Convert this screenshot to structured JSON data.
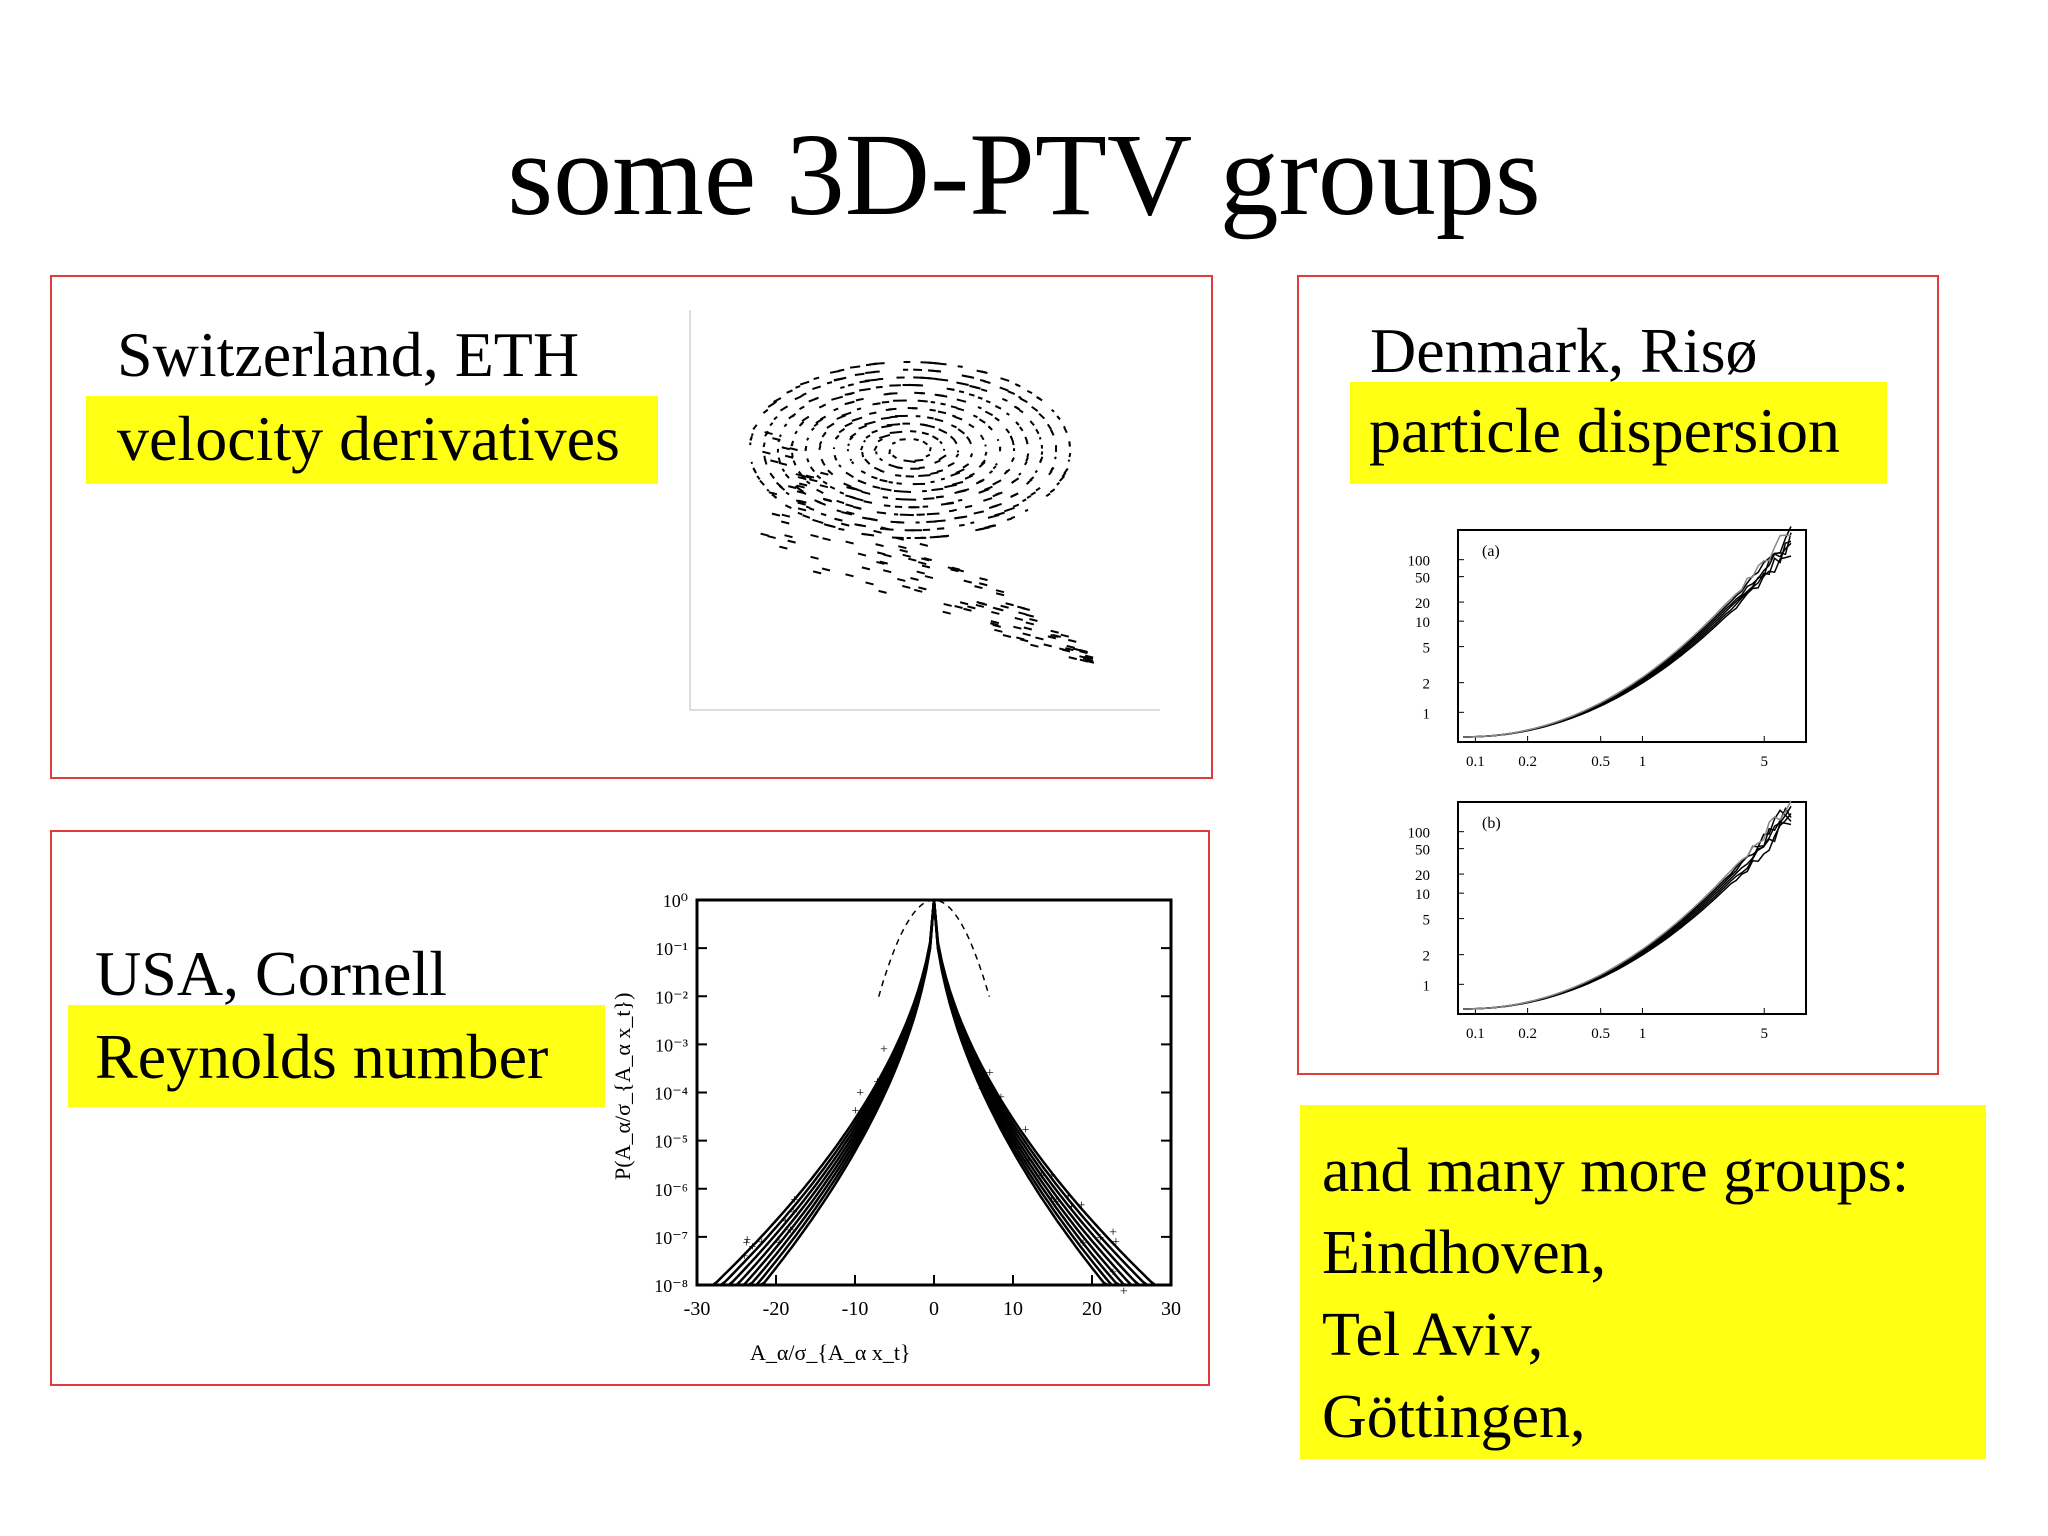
{
  "title": "some 3D-PTV groups",
  "colors": {
    "box_border": "#e03c3c",
    "highlight": "#ffff14"
  },
  "groups": [
    {
      "location": "Switzerland, ETH",
      "topic": "velocity derivatives"
    },
    {
      "location": "Denmark, Risø",
      "topic": "particle dispersion"
    },
    {
      "location": "USA, Cornell",
      "topic": "Reynolds number"
    }
  ],
  "more": {
    "lines": [
      "and many more groups:",
      "Eindhoven,",
      "Tel Aviv,",
      "Göttingen,"
    ]
  },
  "figures": {
    "dispersion_a": {
      "panel_label": "(a)",
      "y_ticks": [
        "100",
        "50",
        "20",
        "10",
        "5",
        "2",
        "1"
      ],
      "x_ticks": [
        "0.1",
        "0.2",
        "0.5",
        "1",
        "5"
      ]
    },
    "dispersion_b": {
      "panel_label": "(b)",
      "y_ticks": [
        "100",
        "50",
        "20",
        "10",
        "5",
        "2",
        "1"
      ],
      "x_ticks": [
        "0.1",
        "0.2",
        "0.5",
        "1",
        "5"
      ]
    },
    "pdf": {
      "y_ticks": [
        "10⁰",
        "10⁻¹",
        "10⁻²",
        "10⁻³",
        "10⁻⁴",
        "10⁻⁵",
        "10⁻⁶",
        "10⁻⁷",
        "10⁻⁸"
      ],
      "x_ticks": [
        "-30",
        "-20",
        "-10",
        "0",
        "10",
        "20",
        "30"
      ],
      "xlabel": "A_α/σ_{A_α x_t}",
      "ylabel": "P(A_α/σ_{A_α x_t})"
    }
  }
}
